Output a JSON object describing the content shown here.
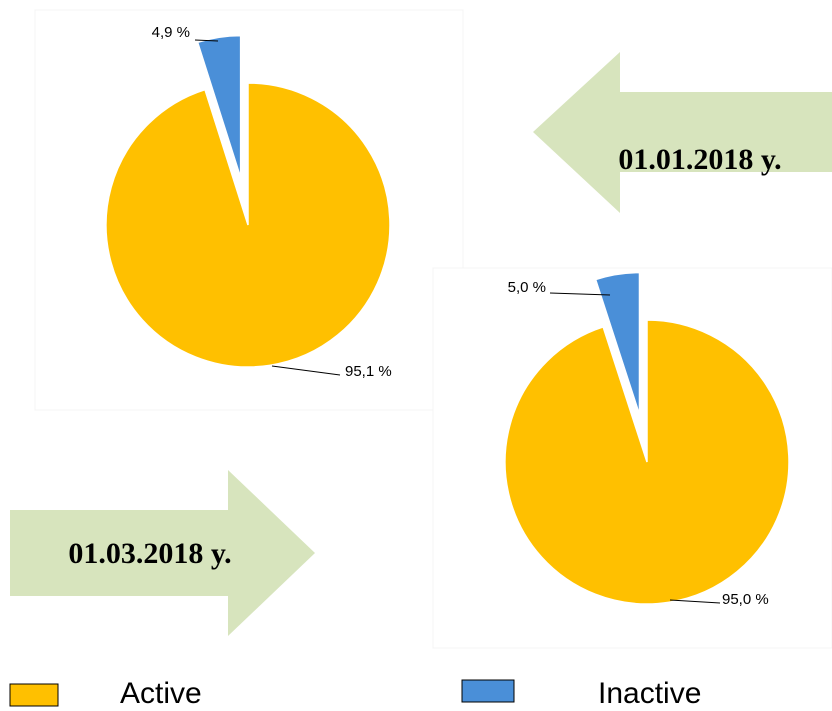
{
  "chart_data": [
    {
      "type": "pie",
      "title": "01.01.2018 y.",
      "categories": [
        "Active",
        "Inactive"
      ],
      "values": [
        95.1,
        4.9
      ],
      "value_labels": [
        "95,1 %",
        "4,9 %"
      ],
      "colors": [
        "#ffc000",
        "#4a8fd8"
      ]
    },
    {
      "type": "pie",
      "title": "01.03.2018 y.",
      "categories": [
        "Active",
        "Inactive"
      ],
      "values": [
        95.0,
        5.0
      ],
      "value_labels": [
        "95,0 %",
        "5,0 %"
      ],
      "colors": [
        "#ffc000",
        "#4a8fd8"
      ]
    }
  ]
}
